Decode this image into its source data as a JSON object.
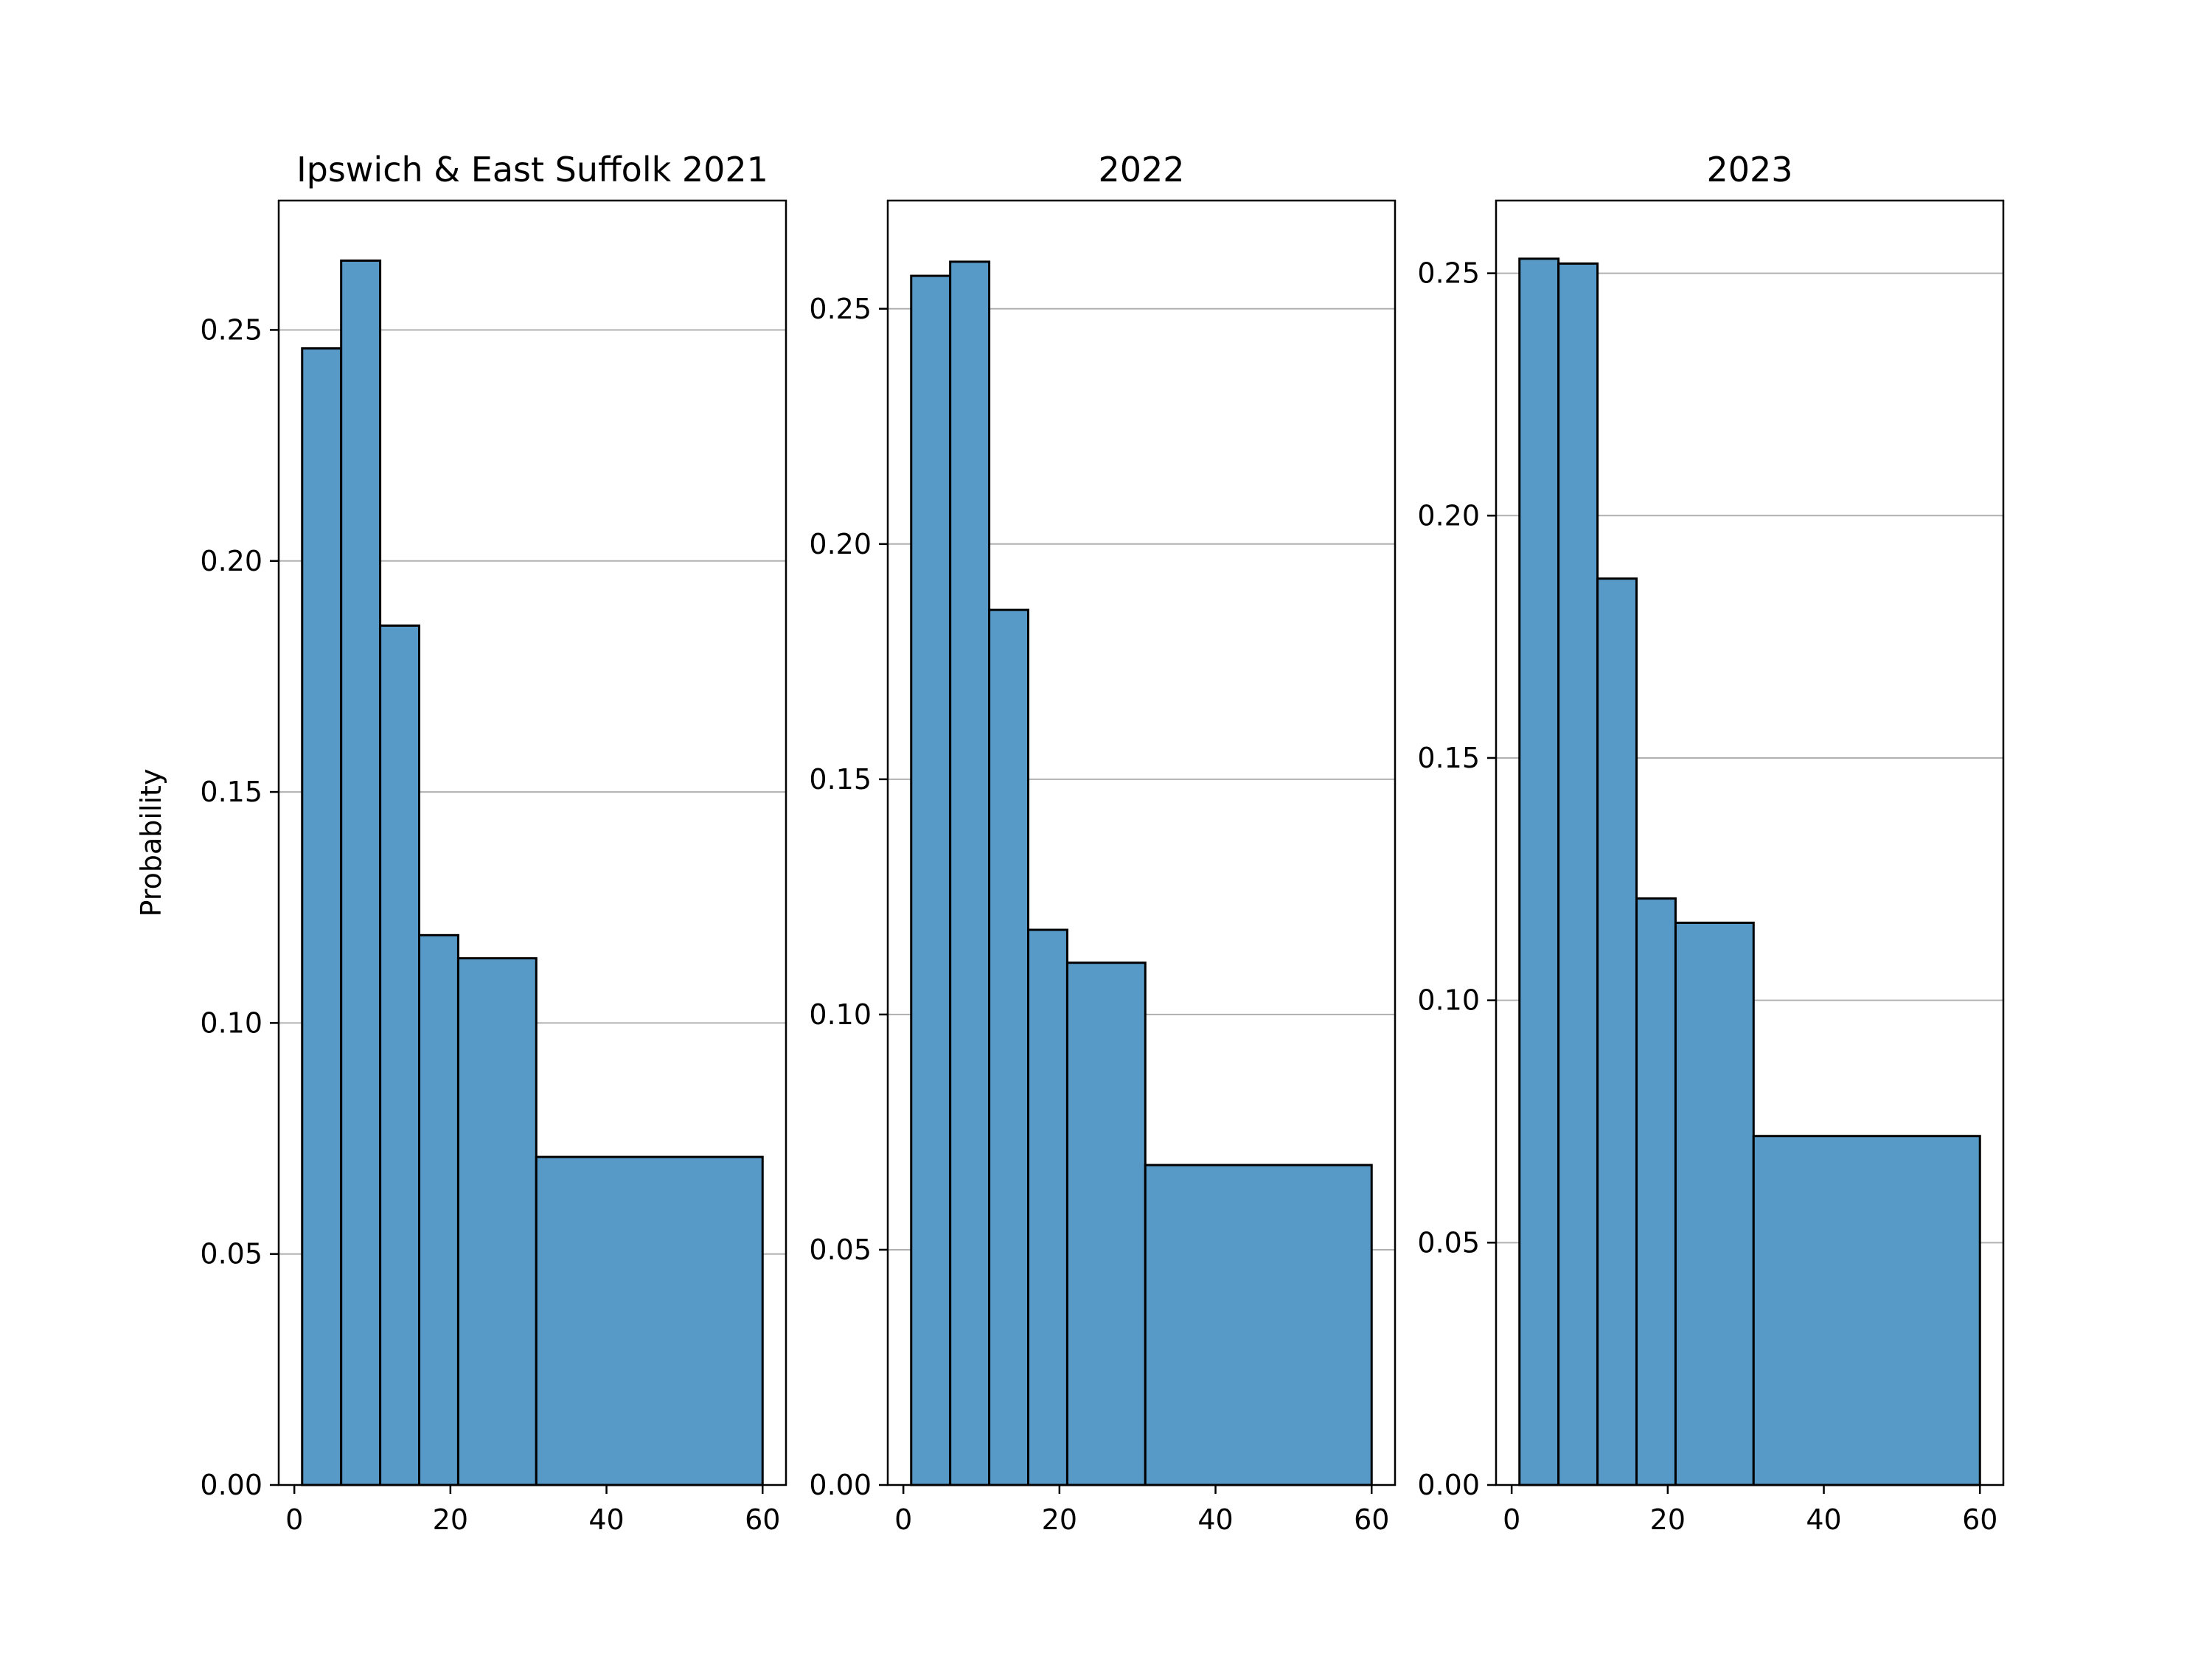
{
  "chart_data": [
    {
      "type": "bar",
      "title": "Ipswich & East Suffolk 2021",
      "xlabel": "",
      "ylabel": "Probability",
      "xlim": [
        -2,
        63
      ],
      "ylim": [
        0,
        0.278
      ],
      "grid": "y-only",
      "bin_edges": [
        1,
        6,
        11,
        16,
        21,
        31,
        60
      ],
      "values": [
        0.246,
        0.265,
        0.186,
        0.119,
        0.114,
        0.071
      ],
      "x_ticks": [
        "0",
        "20",
        "40",
        "60"
      ],
      "y_ticks": [
        "0.00",
        "0.05",
        "0.10",
        "0.15",
        "0.20",
        "0.25"
      ]
    },
    {
      "type": "bar",
      "title": "2022",
      "xlabel": "",
      "ylabel": "",
      "xlim": [
        -2,
        63
      ],
      "ylim": [
        0,
        0.273
      ],
      "grid": "y-only",
      "bin_edges": [
        1,
        6,
        11,
        16,
        21,
        31,
        60
      ],
      "values": [
        0.257,
        0.26,
        0.186,
        0.118,
        0.111,
        0.068
      ],
      "x_ticks": [
        "0",
        "20",
        "40",
        "60"
      ],
      "y_ticks": [
        "0.00",
        "0.05",
        "0.10",
        "0.15",
        "0.20",
        "0.25"
      ]
    },
    {
      "type": "bar",
      "title": "2023",
      "xlabel": "",
      "ylabel": "",
      "xlim": [
        -2,
        63
      ],
      "ylim": [
        0,
        0.265
      ],
      "grid": "y-only",
      "bin_edges": [
        1,
        6,
        11,
        16,
        21,
        31,
        60
      ],
      "values": [
        0.253,
        0.252,
        0.187,
        0.121,
        0.116,
        0.072
      ],
      "x_ticks": [
        "0",
        "20",
        "40",
        "60"
      ],
      "y_ticks": [
        "0.00",
        "0.05",
        "0.10",
        "0.15",
        "0.20",
        "0.25"
      ]
    }
  ],
  "colors": {
    "bar_fill": "#5799c7",
    "bar_edge": "#000000",
    "grid": "#b0b0b0",
    "axes": "#000000"
  }
}
